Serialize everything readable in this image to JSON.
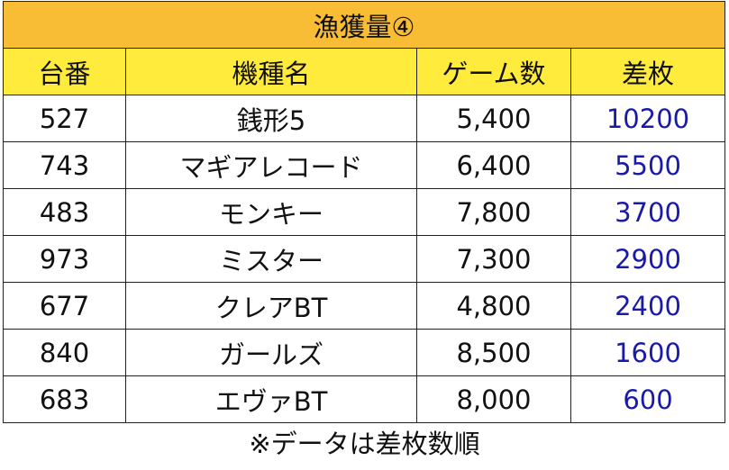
{
  "title": "漁獲量④",
  "headers": [
    "台番",
    "機種名",
    "ゲーム数",
    "差枚"
  ],
  "rows": [
    [
      "527",
      "銭形5",
      "5,400",
      "10200"
    ],
    [
      "743",
      "マギアレコード",
      "6,400",
      "5500"
    ],
    [
      "483",
      "モンキー",
      "7,800",
      "3700"
    ],
    [
      "973",
      "ミスター",
      "7,300",
      "2900"
    ],
    [
      "677",
      "クレアBT",
      "4,800",
      "2400"
    ],
    [
      "840",
      "ガールズ",
      "8,500",
      "1600"
    ],
    [
      "683",
      "エヴァBT",
      "8,000",
      "600"
    ]
  ],
  "note": "※データは差枚数順",
  "colors": {
    "title_bg": "#F8BC35",
    "header_bg": "#FFEB3B",
    "diff_text": "#1a1aa8"
  }
}
